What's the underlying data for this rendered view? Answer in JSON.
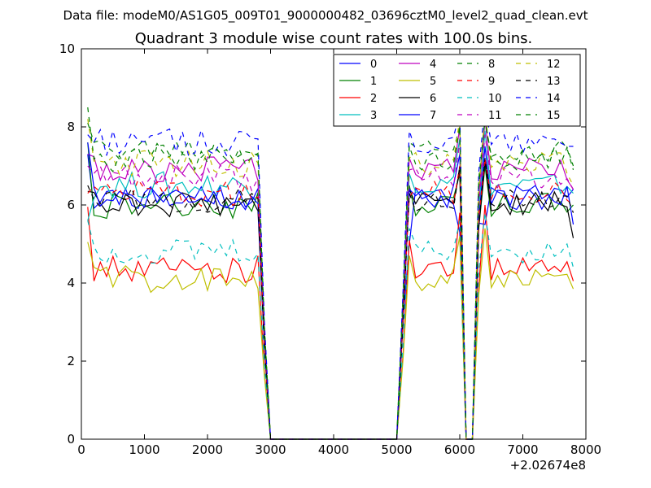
{
  "chart_data": {
    "type": "line",
    "suptitle": "Data file: modeM0/AS1G05_009T01_9000000482_03696cztM0_level2_quad_clean.evt",
    "title": "Quadrant 3 module wise count rates with 100.0s bins.",
    "xlabel": "",
    "ylabel": "",
    "x_offset_label": "+2.02674e8",
    "xlim": [
      0,
      8000
    ],
    "ylim": [
      0,
      10
    ],
    "xticks": [
      "0",
      "1000",
      "2000",
      "3000",
      "4000",
      "5000",
      "6000",
      "7000",
      "8000"
    ],
    "yticks": [
      "0",
      "2",
      "4",
      "6",
      "8",
      "10"
    ],
    "legend_position": "top-right",
    "segments": [
      {
        "start": 100,
        "end": 2800,
        "step": 100
      },
      {
        "start": 5200,
        "end": 6000,
        "step": 100
      },
      {
        "start": 6400,
        "end": 7800,
        "step": 100
      }
    ],
    "series": [
      {
        "name": "0",
        "color": "#0000ff",
        "dash": "solid",
        "level": 6.15,
        "v": [
          7.3,
          6.1,
          5.0,
          5.3,
          6.4
        ]
      },
      {
        "name": "1",
        "color": "#008000",
        "dash": "solid",
        "level": 6.0,
        "v": [
          7.6,
          6.0,
          6.5,
          6.8,
          6.0
        ]
      },
      {
        "name": "2",
        "color": "#ff0000",
        "dash": "solid",
        "level": 4.35,
        "v": [
          5.95,
          4.4,
          5.1,
          5.8,
          4.05
        ]
      },
      {
        "name": "3",
        "color": "#00bfbf",
        "dash": "solid",
        "level": 6.5,
        "v": [
          5.6,
          6.5,
          6.8,
          7.7,
          6.3
        ]
      },
      {
        "name": "4",
        "color": "#bf00bf",
        "dash": "solid",
        "level": 6.9,
        "v": [
          7.3,
          6.9,
          7.2,
          8.0,
          6.4
        ]
      },
      {
        "name": "5",
        "color": "#bfbf00",
        "dash": "solid",
        "level": 4.1,
        "v": [
          5.05,
          4.2,
          4.7,
          5.2,
          3.85
        ]
      },
      {
        "name": "6",
        "color": "#000000",
        "dash": "solid",
        "level": 6.05,
        "v": [
          6.35,
          6.1,
          6.4,
          6.9,
          5.15
        ]
      },
      {
        "name": "7",
        "color": "#0000ff",
        "dash": "solid",
        "level": 6.2,
        "v": [
          7.6,
          6.2,
          6.4,
          7.3,
          5.5
        ]
      },
      {
        "name": "8",
        "color": "#008000",
        "dash": "dash",
        "level": 7.4,
        "v": [
          8.1,
          7.4,
          7.6,
          8.0,
          6.9
        ]
      },
      {
        "name": "9",
        "color": "#ff0000",
        "dash": "dash",
        "level": 6.3,
        "v": [
          6.3,
          6.3,
          6.2,
          7.0,
          6.0
        ]
      },
      {
        "name": "10",
        "color": "#00bfbf",
        "dash": "dash",
        "level": 4.8,
        "v": [
          5.6,
          4.8,
          5.4,
          5.6,
          4.4
        ]
      },
      {
        "name": "11",
        "color": "#bf00bf",
        "dash": "dash",
        "level": 6.7,
        "v": [
          7.0,
          6.7,
          6.9,
          7.6,
          6.4
        ]
      },
      {
        "name": "12",
        "color": "#bfbf00",
        "dash": "dash",
        "level": 7.05,
        "v": [
          8.2,
          7.0,
          7.2,
          8.2,
          6.5
        ]
      },
      {
        "name": "13",
        "color": "#000000",
        "dash": "dash",
        "level": 6.1,
        "v": [
          6.5,
          6.1,
          6.3,
          7.0,
          5.8
        ]
      },
      {
        "name": "14",
        "color": "#0000ff",
        "dash": "dash",
        "level": 7.6,
        "v": [
          7.8,
          7.6,
          7.9,
          8.4,
          7.5
        ]
      },
      {
        "name": "15",
        "color": "#008000",
        "dash": "dash",
        "level": 7.2,
        "v": [
          8.5,
          7.2,
          7.5,
          8.0,
          7.0
        ]
      }
    ]
  }
}
